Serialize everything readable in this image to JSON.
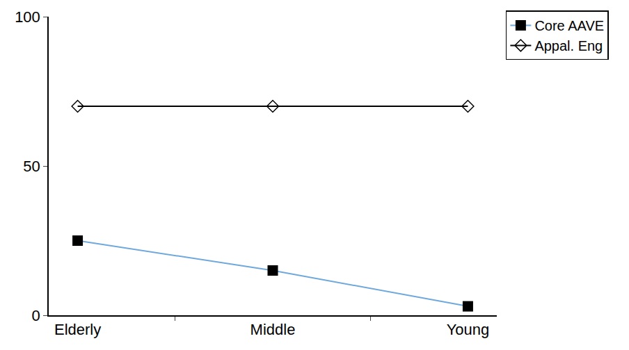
{
  "chart_data": {
    "type": "line",
    "categories": [
      "Elderly",
      "Middle",
      "Young"
    ],
    "series": [
      {
        "name": "Core AAVE",
        "color": "#6fa8dc",
        "marker": "square",
        "values": [
          25,
          15,
          3
        ]
      },
      {
        "name": "Appal. Eng",
        "color": "#000000",
        "marker": "diamond-open",
        "values": [
          70,
          70,
          70
        ]
      }
    ],
    "ylim": [
      0,
      100
    ],
    "yticks": [
      0,
      50,
      100
    ],
    "grid": false,
    "legend": "upper right"
  }
}
